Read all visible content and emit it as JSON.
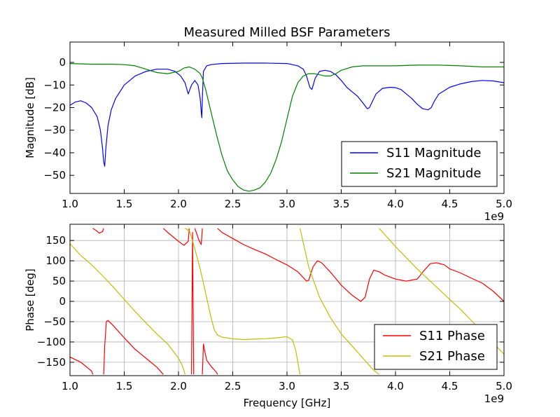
{
  "chart_data": [
    {
      "type": "line",
      "title": "Measured Milled BSF Parameters",
      "xlabel": "",
      "ylabel": "Magnitude [dB]",
      "xlim": [
        1.0,
        5.0
      ],
      "ylim": [
        -58,
        9
      ],
      "x_offset_label": "1e9",
      "xticks": [
        "1.0",
        "1.5",
        "2.0",
        "2.5",
        "3.0",
        "3.5",
        "4.0",
        "4.5",
        "5.0"
      ],
      "yticks": [
        "0",
        "−10",
        "−20",
        "−30",
        "−40",
        "−50"
      ],
      "ytick_values": [
        0,
        -10,
        -20,
        -30,
        -40,
        -50
      ],
      "grid": false,
      "legend_position": "lower-right",
      "series": [
        {
          "name": "S11 Magnitude",
          "color": "#0000ff",
          "x": [
            1.0,
            1.05,
            1.1,
            1.15,
            1.2,
            1.25,
            1.28,
            1.3,
            1.31,
            1.32,
            1.33,
            1.35,
            1.38,
            1.42,
            1.5,
            1.6,
            1.7,
            1.8,
            1.9,
            1.97,
            2.02,
            2.06,
            2.09,
            2.12,
            2.15,
            2.18,
            2.2,
            2.21,
            2.215,
            2.22,
            2.23,
            2.26,
            2.3,
            2.4,
            2.6,
            2.8,
            3.0,
            3.1,
            3.15,
            3.18,
            3.21,
            3.23,
            3.26,
            3.3,
            3.35,
            3.4,
            3.45,
            3.5,
            3.55,
            3.6,
            3.65,
            3.7,
            3.74,
            3.76,
            3.78,
            3.82,
            3.88,
            3.95,
            4.0,
            4.05,
            4.1,
            4.15,
            4.2,
            4.25,
            4.3,
            4.33,
            4.36,
            4.4,
            4.5,
            4.6,
            4.7,
            4.8,
            4.9,
            5.0
          ],
          "y": [
            -19,
            -17.5,
            -17,
            -18,
            -20,
            -24,
            -30,
            -38,
            -44,
            -46,
            -38,
            -28,
            -21,
            -16,
            -10,
            -6,
            -4,
            -3,
            -3,
            -4,
            -6,
            -9,
            -14,
            -10,
            -8,
            -10,
            -16,
            -22,
            -24.5,
            -16,
            -4,
            -1.5,
            -1,
            -0.5,
            -0.3,
            -0.3,
            -0.5,
            -1.5,
            -3,
            -6,
            -11,
            -12,
            -7,
            -4,
            -3.5,
            -4,
            -5.5,
            -8,
            -11,
            -13,
            -15,
            -18,
            -20.5,
            -20,
            -18,
            -14,
            -11.5,
            -11,
            -11.2,
            -12,
            -14,
            -16,
            -18.5,
            -20.5,
            -21,
            -20,
            -17,
            -14,
            -11,
            -9.5,
            -8.5,
            -8,
            -8.2,
            -9
          ]
        },
        {
          "name": "S21 Magnitude",
          "color": "#008000",
          "x": [
            1.0,
            1.2,
            1.4,
            1.5,
            1.6,
            1.7,
            1.8,
            1.9,
            2.0,
            2.05,
            2.1,
            2.15,
            2.2,
            2.22,
            2.25,
            2.3,
            2.35,
            2.4,
            2.45,
            2.5,
            2.55,
            2.6,
            2.65,
            2.7,
            2.75,
            2.8,
            2.85,
            2.9,
            2.95,
            3.0,
            3.05,
            3.1,
            3.15,
            3.2,
            3.25,
            3.3,
            3.35,
            3.4,
            3.45,
            3.5,
            3.6,
            3.7,
            3.8,
            4.0,
            4.2,
            4.4,
            4.6,
            4.8,
            5.0
          ],
          "y": [
            -0.5,
            -0.8,
            -0.8,
            -1,
            -1.5,
            -3,
            -4.5,
            -5,
            -4,
            -2.5,
            -2,
            -3,
            -5,
            -7,
            -12,
            -22,
            -32,
            -41,
            -48,
            -52,
            -55,
            -56.5,
            -57,
            -56.5,
            -55.5,
            -53,
            -49,
            -43,
            -35,
            -25,
            -15,
            -9,
            -6,
            -5,
            -5,
            -5.5,
            -6,
            -6,
            -5,
            -3.5,
            -2,
            -1.5,
            -1.5,
            -1.5,
            -1.2,
            -1.2,
            -1.5,
            -2,
            -2
          ]
        }
      ]
    },
    {
      "type": "line",
      "title": "",
      "xlabel": "Frequency [GHz]",
      "ylabel": "Phase [deg]",
      "xlim": [
        1.0,
        5.0
      ],
      "ylim": [
        -183,
        190
      ],
      "x_offset_label": "1e9",
      "xticks": [
        "1.0",
        "1.5",
        "2.0",
        "2.5",
        "3.0",
        "3.5",
        "4.0",
        "4.5",
        "5.0"
      ],
      "yticks": [
        "150",
        "100",
        "50",
        "0",
        "−50",
        "−100",
        "−150"
      ],
      "ytick_values": [
        150,
        100,
        50,
        0,
        -50,
        -100,
        -150
      ],
      "grid": true,
      "legend_position": "lower-right",
      "series": [
        {
          "name": "S11 Phase",
          "color": "#ff0000",
          "segments": [
            {
              "x": [
                1.0,
                1.1,
                1.2,
                1.21
              ],
              "y": [
                -137,
                -150,
                -172,
                -180
              ]
            },
            {
              "x": [
                1.21,
                1.24,
                1.27,
                1.3,
                1.31
              ],
              "y": [
                180,
                175,
                168,
                172,
                180
              ]
            },
            {
              "x": [
                1.31,
                1.32,
                1.335,
                1.35,
                1.4,
                1.5,
                1.6,
                1.7,
                1.8,
                1.86
              ],
              "y": [
                -180,
                -110,
                -50,
                -47,
                -60,
                -90,
                -118,
                -140,
                -162,
                -180
              ]
            },
            {
              "x": [
                1.86,
                1.9,
                2.0,
                2.05,
                2.09,
                2.1
              ],
              "y": [
                180,
                170,
                148,
                138,
                148,
                180
              ]
            },
            {
              "x": [
                2.12,
                2.13,
                2.14
              ],
              "y": [
                -180,
                170,
                -180
              ]
            },
            {
              "x": [
                2.15,
                2.17,
                2.19,
                2.21,
                2.22
              ],
              "y": [
                180,
                165,
                150,
                140,
                180
              ]
            },
            {
              "x": [
                2.22,
                2.23,
                2.24,
                2.26,
                2.3,
                2.35,
                2.36
              ],
              "y": [
                -180,
                -105,
                -120,
                -145,
                -160,
                -175,
                -180
              ]
            },
            {
              "x": [
                2.36,
                2.4,
                2.5,
                2.6,
                2.7,
                2.8,
                2.9,
                3.0,
                3.1,
                3.18,
                3.2,
                3.24,
                3.28,
                3.32,
                3.4,
                3.5,
                3.6,
                3.68,
                3.72,
                3.76,
                3.8,
                3.85,
                3.9,
                4.0,
                4.1,
                4.2,
                4.26,
                4.32,
                4.38,
                4.45,
                4.5,
                4.6,
                4.7,
                4.8,
                4.9,
                5.0
              ],
              "y": [
                180,
                170,
                155,
                140,
                128,
                117,
                103,
                90,
                73,
                50,
                52,
                85,
                100,
                95,
                72,
                40,
                15,
                0,
                10,
                55,
                77,
                73,
                65,
                55,
                50,
                55,
                75,
                93,
                95,
                90,
                80,
                70,
                57,
                45,
                25,
                0
              ]
            }
          ]
        },
        {
          "name": "S21 Phase",
          "color": "#bfbf00",
          "segments": [
            {
              "x": [
                1.0,
                1.1,
                1.2,
                1.3,
                1.4,
                1.5,
                1.6,
                1.7,
                1.8,
                1.9,
                2.0,
                2.03,
                2.05,
                2.06
              ],
              "y": [
                142,
                113,
                90,
                63,
                35,
                5,
                -25,
                -53,
                -80,
                -105,
                -140,
                -155,
                -170,
                -180
              ]
            },
            {
              "x": [
                2.06,
                2.075,
                2.085,
                2.1
              ],
              "y": [
                180,
                178,
                175,
                180
              ]
            },
            {
              "x": [
                2.1,
                2.14,
                2.2,
                2.25,
                2.3,
                2.33,
                2.36,
                2.4,
                2.5,
                2.6,
                2.7,
                2.8,
                2.9,
                3.0,
                3.05,
                3.08,
                3.1,
                3.12
              ],
              "y": [
                175,
                140,
                80,
                20,
                -40,
                -70,
                -83,
                -88,
                -92,
                -94,
                -93,
                -92,
                -90,
                -87,
                -95,
                -120,
                -150,
                -180
              ]
            },
            {
              "x": [
                3.12,
                3.2,
                3.3,
                3.4,
                3.5,
                3.6,
                3.7,
                3.8,
                3.85
              ],
              "y": [
                180,
                85,
                10,
                -40,
                -80,
                -110,
                -140,
                -170,
                -180
              ]
            },
            {
              "x": [
                3.85,
                3.9,
                4.0,
                4.2,
                4.4,
                4.6,
                4.8,
                5.0
              ],
              "y": [
                180,
                165,
                135,
                80,
                30,
                -20,
                -75,
                -130
              ]
            }
          ]
        }
      ]
    }
  ]
}
